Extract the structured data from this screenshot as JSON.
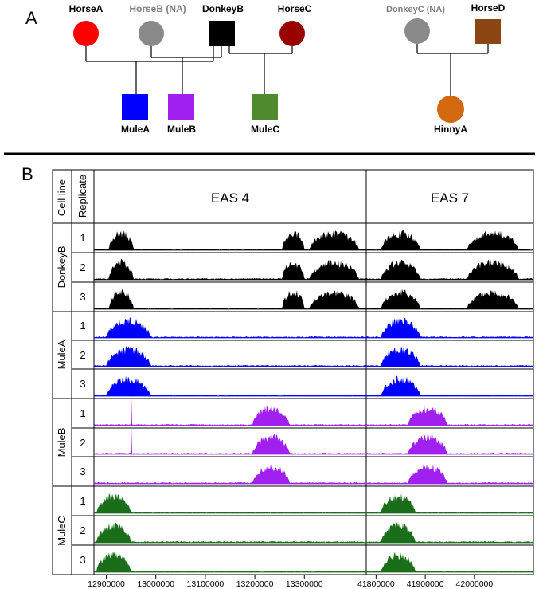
{
  "panel_a": {
    "label": "A",
    "individuals": [
      {
        "id": "horse_a",
        "name": "HorseA",
        "shape": "circle",
        "color": "#ff0000",
        "label_color": "#000000"
      },
      {
        "id": "horse_b",
        "name": "HorseB (NA)",
        "shape": "circle",
        "color": "#8a8a8a",
        "label_color": "#808080"
      },
      {
        "id": "donkey_b",
        "name": "DonkeyB",
        "shape": "square",
        "color": "#000000",
        "label_color": "#000000"
      },
      {
        "id": "horse_c",
        "name": "HorseC",
        "shape": "circle",
        "color": "#990000",
        "label_color": "#000000"
      },
      {
        "id": "donkey_c",
        "name": "DonkeyC (NA)",
        "shape": "circle",
        "color": "#8a8a8a",
        "label_color": "#808080"
      },
      {
        "id": "horse_d",
        "name": "HorseD",
        "shape": "square",
        "color": "#8b4513",
        "label_color": "#000000"
      },
      {
        "id": "mule_a",
        "name": "MuleA",
        "shape": "square",
        "color": "#0000ff",
        "label_color": "#000000"
      },
      {
        "id": "mule_b",
        "name": "MuleB",
        "shape": "square",
        "color": "#a020f0",
        "label_color": "#000000"
      },
      {
        "id": "mule_c",
        "name": "MuleC",
        "shape": "square",
        "color": "#4f8a2f",
        "label_color": "#000000"
      },
      {
        "id": "hinny_a",
        "name": "HinnyA",
        "shape": "circle",
        "color": "#d2690f",
        "label_color": "#000000"
      }
    ]
  },
  "panel_b": {
    "label": "B",
    "header_cell_line": "Cell line",
    "header_replicate": "Replicate",
    "regions": [
      {
        "name": "EAS 4",
        "xlim": [
          12875000,
          13425000
        ],
        "ticks": [
          12900000,
          13000000,
          13100000,
          13200000,
          13300000
        ]
      },
      {
        "name": "EAS 7",
        "xlim": [
          41780000,
          42120000
        ],
        "ticks": [
          41800000,
          41900000,
          42000000
        ]
      }
    ],
    "cell_lines": [
      {
        "name": "DonkeyB",
        "color": "#000000",
        "replicates": [
          "1",
          "2",
          "3"
        ]
      },
      {
        "name": "MuleA",
        "color": "#0000ff",
        "replicates": [
          "1",
          "2",
          "3"
        ]
      },
      {
        "name": "MuleB",
        "color": "#a020f0",
        "replicates": [
          "1",
          "2",
          "3"
        ]
      },
      {
        "name": "MuleC",
        "color": "#1a6e1a",
        "replicates": [
          "1",
          "2",
          "3"
        ]
      }
    ]
  },
  "chart_data": {
    "type": "area",
    "title": "",
    "xlabel": "",
    "ylabel": "",
    "grid": false,
    "panels": [
      {
        "cell_line": "DonkeyB",
        "region": "EAS 4",
        "peaks": [
          [
            12905000,
            12955000
          ],
          [
            13255000,
            13300000
          ],
          [
            13310000,
            13410000
          ]
        ]
      },
      {
        "cell_line": "DonkeyB",
        "region": "EAS 7",
        "peaks": [
          [
            41810000,
            41890000
          ],
          [
            41985000,
            42090000
          ]
        ]
      },
      {
        "cell_line": "MuleA",
        "region": "EAS 4",
        "peaks": [
          [
            12900000,
            12990000
          ]
        ]
      },
      {
        "cell_line": "MuleA",
        "region": "EAS 7",
        "peaks": [
          [
            41810000,
            41890000
          ]
        ]
      },
      {
        "cell_line": "MuleB",
        "region": "EAS 4",
        "peaks": [
          [
            13195000,
            13270000
          ]
        ],
        "spike": 12950000
      },
      {
        "cell_line": "MuleB",
        "region": "EAS 7",
        "peaks": [
          [
            41865000,
            41945000
          ]
        ]
      },
      {
        "cell_line": "MuleC",
        "region": "EAS 4",
        "peaks": [
          [
            12880000,
            12950000
          ]
        ]
      },
      {
        "cell_line": "MuleC",
        "region": "EAS 7",
        "peaks": [
          [
            41810000,
            41880000
          ]
        ]
      }
    ]
  }
}
